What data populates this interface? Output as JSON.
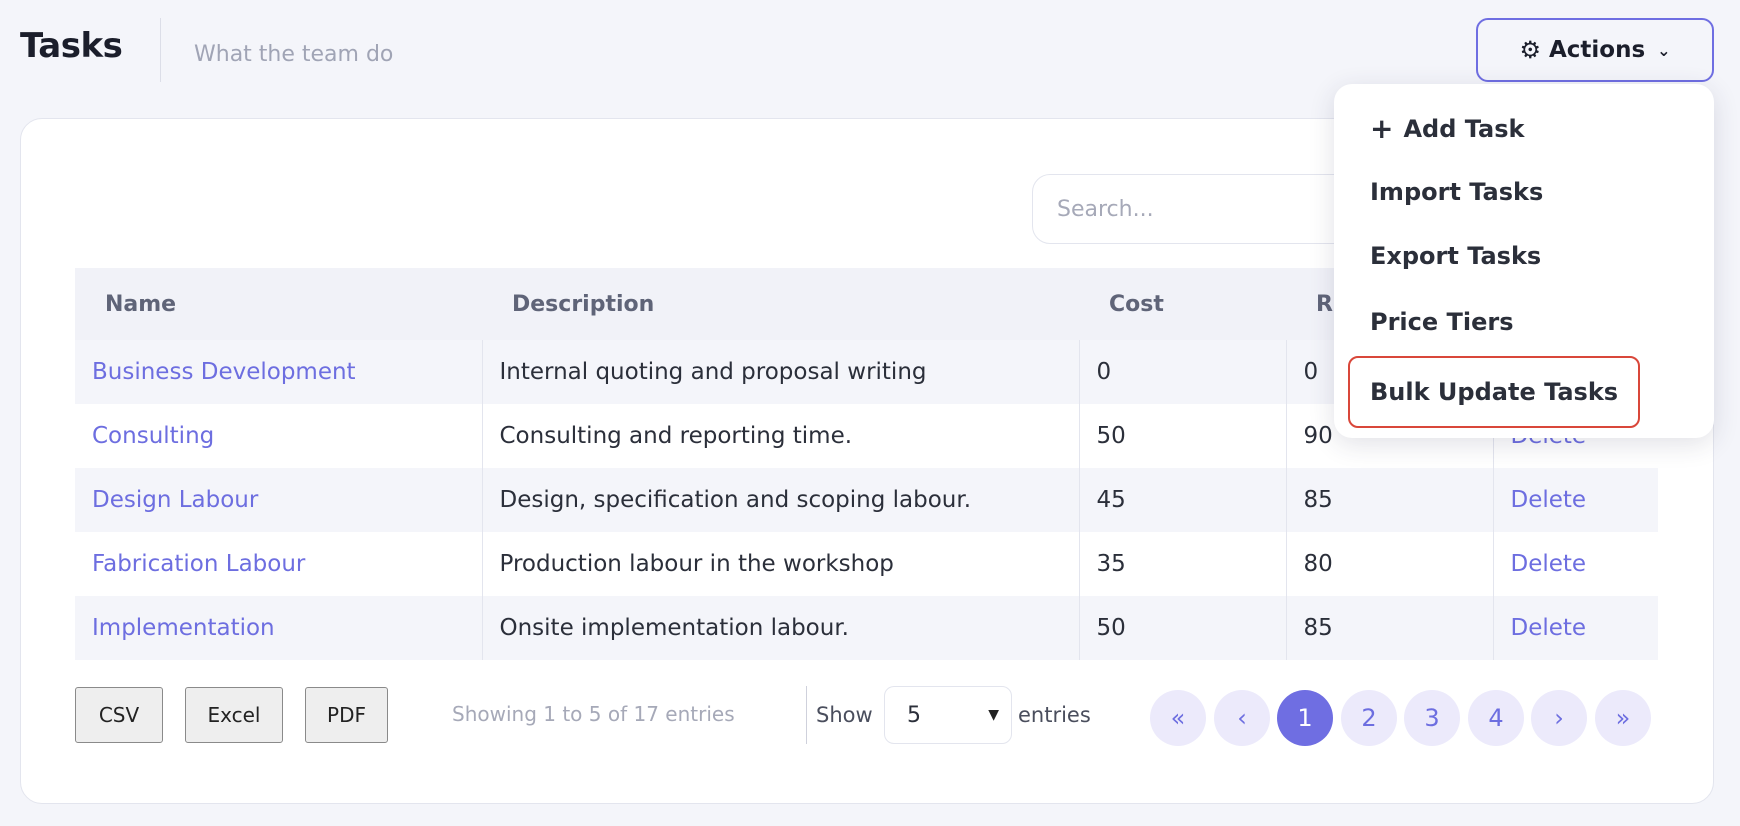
{
  "header": {
    "title": "Tasks",
    "subtitle": "What the team do",
    "actions_label": "Actions",
    "actions_icon": "gear-icon"
  },
  "search": {
    "placeholder": "Search..."
  },
  "table": {
    "columns": [
      "Name",
      "Description",
      "Cost",
      "R",
      ""
    ],
    "rows": [
      {
        "name": "Business Development",
        "description": "Internal quoting and proposal writing",
        "cost": "0",
        "rate": "0",
        "action": ""
      },
      {
        "name": "Consulting",
        "description": "Consulting and reporting time.",
        "cost": "50",
        "rate": "90",
        "action": "Delete"
      },
      {
        "name": "Design Labour",
        "description": "Design, specification and scoping labour.",
        "cost": "45",
        "rate": "85",
        "action": "Delete"
      },
      {
        "name": "Fabrication Labour",
        "description": "Production labour in the workshop",
        "cost": "35",
        "rate": "80",
        "action": "Delete"
      },
      {
        "name": "Implementation",
        "description": "Onsite implementation labour.",
        "cost": "50",
        "rate": "85",
        "action": "Delete"
      }
    ]
  },
  "footer": {
    "export_buttons": [
      "CSV",
      "Excel",
      "PDF"
    ],
    "info": "Showing 1 to 5 of 17 entries",
    "show_label": "Show",
    "page_size": "5",
    "entries_label": "entries",
    "pager": {
      "first": "«",
      "prev": "‹",
      "pages": [
        "1",
        "2",
        "3",
        "4"
      ],
      "next": "›",
      "last": "»",
      "current": "1"
    }
  },
  "actions_menu": {
    "items": [
      "Add Task",
      "Import Tasks",
      "Export Tasks",
      "Price Tiers",
      "Bulk Update Tasks"
    ]
  },
  "colors": {
    "accent": "#6f6ee2",
    "link": "#6d6ee0",
    "highlight_border": "#d9473a"
  }
}
